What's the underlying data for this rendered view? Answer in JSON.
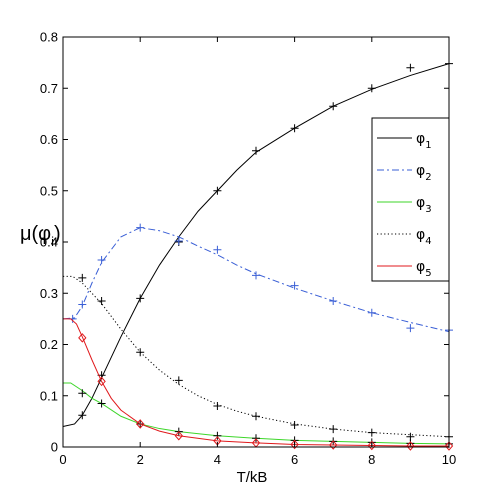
{
  "chart_data": {
    "type": "line",
    "xlabel": "T/kB",
    "ylabel_main": "μ(φ",
    "ylabel_sub": "i",
    "ylabel_close": ")",
    "xlim": [
      0,
      10
    ],
    "ylim": [
      0,
      0.8
    ],
    "xticks": [
      "0",
      "2",
      "4",
      "6",
      "8",
      "10"
    ],
    "yticks": [
      "0",
      "0.1",
      "0.2",
      "0.3",
      "0.4",
      "0.5",
      "0.6",
      "0.7",
      "0.8"
    ],
    "grid": false,
    "legend_position": "right",
    "series": [
      {
        "name": "φ",
        "sub": "1",
        "color": "#000000",
        "dash": "",
        "marker": "plus",
        "curve_x": [
          0,
          0.3,
          0.5,
          0.75,
          1,
          1.5,
          2,
          2.5,
          3,
          3.5,
          4,
          4.5,
          5,
          6,
          7,
          8,
          9,
          10
        ],
        "curve_y": [
          0.04,
          0.045,
          0.062,
          0.095,
          0.135,
          0.215,
          0.29,
          0.355,
          0.41,
          0.46,
          0.5,
          0.54,
          0.575,
          0.622,
          0.665,
          0.698,
          0.725,
          0.748
        ],
        "points_x": [
          0.5,
          1,
          2,
          3,
          4,
          5,
          6,
          7,
          8,
          9,
          10
        ],
        "points_y": [
          0.062,
          0.14,
          0.29,
          0.4,
          0.5,
          0.578,
          0.622,
          0.665,
          0.7,
          0.74,
          0.748
        ]
      },
      {
        "name": "φ",
        "sub": "2",
        "color": "#3a5fd6",
        "dash": "7 3 2 3",
        "marker": "plus",
        "curve_x": [
          0,
          0.3,
          0.5,
          0.75,
          1,
          1.5,
          2,
          2.5,
          3,
          3.5,
          4,
          4.5,
          5,
          6,
          7,
          8,
          9,
          10
        ],
        "curve_y": [
          0.25,
          0.252,
          0.275,
          0.32,
          0.36,
          0.41,
          0.428,
          0.422,
          0.41,
          0.392,
          0.375,
          0.355,
          0.338,
          0.31,
          0.285,
          0.262,
          0.243,
          0.225
        ],
        "points_x": [
          0.25,
          0.5,
          1,
          2,
          3,
          4,
          5,
          6,
          7,
          8,
          9,
          10
        ],
        "points_y": [
          0.25,
          0.278,
          0.365,
          0.428,
          0.402,
          0.385,
          0.335,
          0.315,
          0.285,
          0.262,
          0.232,
          0.228
        ]
      },
      {
        "name": "φ",
        "sub": "3",
        "color": "#3dd62a",
        "dash": "",
        "marker": "plus",
        "curve_x": [
          0,
          0.2,
          0.5,
          0.75,
          1,
          1.5,
          2,
          2.5,
          3,
          4,
          5,
          6,
          7,
          8,
          9,
          10
        ],
        "curve_y": [
          0.125,
          0.125,
          0.11,
          0.095,
          0.085,
          0.06,
          0.045,
          0.036,
          0.03,
          0.022,
          0.017,
          0.013,
          0.011,
          0.009,
          0.007,
          0.006
        ],
        "points_x": [
          0.5,
          1,
          2,
          3,
          4,
          5,
          6,
          7,
          8,
          9,
          10
        ],
        "points_y": [
          0.105,
          0.085,
          0.045,
          0.03,
          0.022,
          0.017,
          0.013,
          0.011,
          0.009,
          0.007,
          0.006
        ]
      },
      {
        "name": "φ",
        "sub": "4",
        "color": "#000000",
        "dash": "1.2 2.4",
        "marker": "plus",
        "curve_x": [
          0,
          0.25,
          0.5,
          0.75,
          1,
          1.5,
          2,
          2.5,
          3,
          3.5,
          4,
          4.5,
          5,
          6,
          7,
          8,
          9,
          10
        ],
        "curve_y": [
          0.333,
          0.333,
          0.32,
          0.3,
          0.28,
          0.23,
          0.185,
          0.15,
          0.122,
          0.1,
          0.083,
          0.07,
          0.06,
          0.045,
          0.035,
          0.028,
          0.024,
          0.02
        ],
        "points_x": [
          0.5,
          1,
          2,
          3,
          4,
          5,
          6,
          7,
          8,
          9,
          10
        ],
        "points_y": [
          0.33,
          0.285,
          0.185,
          0.13,
          0.08,
          0.06,
          0.043,
          0.035,
          0.028,
          0.02,
          0.02
        ]
      },
      {
        "name": "φ",
        "sub": "5",
        "color": "#e0191c",
        "dash": "",
        "marker": "diamond",
        "curve_x": [
          0,
          0.2,
          0.35,
          0.5,
          0.75,
          1,
          1.25,
          1.5,
          2,
          2.5,
          3,
          4,
          5,
          6,
          7,
          8,
          9,
          10
        ],
        "curve_y": [
          0.25,
          0.25,
          0.24,
          0.215,
          0.17,
          0.128,
          0.095,
          0.072,
          0.045,
          0.031,
          0.022,
          0.012,
          0.008,
          0.005,
          0.004,
          0.003,
          0.002,
          0.002
        ],
        "points_x": [
          0.5,
          1,
          2,
          3,
          4,
          5,
          6,
          7,
          8,
          9,
          10
        ],
        "points_y": [
          0.213,
          0.128,
          0.045,
          0.022,
          0.012,
          0.008,
          0.005,
          0.004,
          0.003,
          0.002,
          0.002
        ]
      }
    ]
  }
}
